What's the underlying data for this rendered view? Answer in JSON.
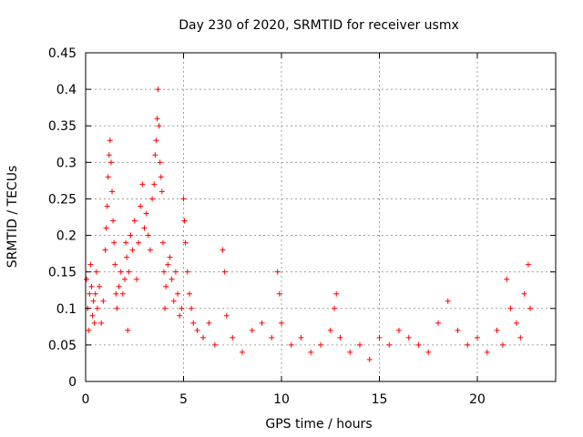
{
  "chart_data": {
    "type": "scatter",
    "title": "Day 230 of 2020, SRMTID for receiver usmx",
    "xlabel": "GPS time / hours",
    "ylabel": "SRMTID / TECUs",
    "xlim": [
      0,
      24
    ],
    "ylim": [
      0,
      0.45
    ],
    "xticks": [
      "0",
      "5",
      "10",
      "15",
      "20"
    ],
    "xtick_values": [
      0,
      5,
      10,
      15,
      20
    ],
    "yticks": [
      "0",
      "0.05",
      "0.1",
      "0.15",
      "0.2",
      "0.25",
      "0.3",
      "0.35",
      "0.4",
      "0.45"
    ],
    "ytick_values": [
      0,
      0.05,
      0.1,
      0.15,
      0.2,
      0.25,
      0.3,
      0.35,
      0.4,
      0.45
    ],
    "grid": true,
    "marker": "+",
    "marker_color": "#ff0000",
    "series": [
      {
        "name": "SRMTID",
        "points": [
          [
            0.05,
            0.14
          ],
          [
            0.1,
            0.1
          ],
          [
            0.15,
            0.07
          ],
          [
            0.2,
            0.12
          ],
          [
            0.25,
            0.16
          ],
          [
            0.3,
            0.13
          ],
          [
            0.35,
            0.09
          ],
          [
            0.4,
            0.11
          ],
          [
            0.45,
            0.08
          ],
          [
            0.5,
            0.12
          ],
          [
            0.55,
            0.15
          ],
          [
            0.6,
            0.1
          ],
          [
            0.7,
            0.13
          ],
          [
            0.8,
            0.08
          ],
          [
            0.9,
            0.11
          ],
          [
            1.0,
            0.18
          ],
          [
            1.05,
            0.21
          ],
          [
            1.1,
            0.24
          ],
          [
            1.15,
            0.28
          ],
          [
            1.2,
            0.31
          ],
          [
            1.25,
            0.33
          ],
          [
            1.3,
            0.3
          ],
          [
            1.35,
            0.26
          ],
          [
            1.4,
            0.22
          ],
          [
            1.45,
            0.19
          ],
          [
            1.5,
            0.16
          ],
          [
            1.55,
            0.12
          ],
          [
            1.6,
            0.1
          ],
          [
            1.7,
            0.13
          ],
          [
            1.8,
            0.15
          ],
          [
            1.9,
            0.12
          ],
          [
            2.0,
            0.14
          ],
          [
            2.05,
            0.19
          ],
          [
            2.1,
            0.17
          ],
          [
            2.15,
            0.07
          ],
          [
            2.2,
            0.15
          ],
          [
            2.3,
            0.2
          ],
          [
            2.4,
            0.18
          ],
          [
            2.5,
            0.22
          ],
          [
            2.6,
            0.14
          ],
          [
            2.7,
            0.19
          ],
          [
            2.8,
            0.24
          ],
          [
            2.9,
            0.27
          ],
          [
            3.0,
            0.21
          ],
          [
            3.1,
            0.23
          ],
          [
            3.2,
            0.2
          ],
          [
            3.3,
            0.18
          ],
          [
            3.4,
            0.25
          ],
          [
            3.5,
            0.27
          ],
          [
            3.55,
            0.31
          ],
          [
            3.6,
            0.33
          ],
          [
            3.65,
            0.36
          ],
          [
            3.7,
            0.4
          ],
          [
            3.75,
            0.35
          ],
          [
            3.8,
            0.3
          ],
          [
            3.85,
            0.28
          ],
          [
            3.9,
            0.26
          ],
          [
            3.95,
            0.19
          ],
          [
            4.0,
            0.15
          ],
          [
            4.05,
            0.1
          ],
          [
            4.1,
            0.13
          ],
          [
            4.2,
            0.16
          ],
          [
            4.3,
            0.17
          ],
          [
            4.4,
            0.14
          ],
          [
            4.5,
            0.11
          ],
          [
            4.6,
            0.15
          ],
          [
            4.7,
            0.12
          ],
          [
            4.8,
            0.09
          ],
          [
            4.9,
            0.1
          ],
          [
            5.0,
            0.25
          ],
          [
            5.05,
            0.22
          ],
          [
            5.1,
            0.19
          ],
          [
            5.2,
            0.15
          ],
          [
            5.3,
            0.12
          ],
          [
            5.4,
            0.1
          ],
          [
            5.5,
            0.08
          ],
          [
            5.7,
            0.07
          ],
          [
            6.0,
            0.06
          ],
          [
            6.3,
            0.08
          ],
          [
            6.6,
            0.05
          ],
          [
            7.0,
            0.18
          ],
          [
            7.1,
            0.15
          ],
          [
            7.2,
            0.09
          ],
          [
            7.5,
            0.06
          ],
          [
            8.0,
            0.04
          ],
          [
            8.5,
            0.07
          ],
          [
            9.0,
            0.08
          ],
          [
            9.5,
            0.06
          ],
          [
            9.8,
            0.15
          ],
          [
            9.9,
            0.12
          ],
          [
            10.0,
            0.08
          ],
          [
            10.5,
            0.05
          ],
          [
            11.0,
            0.06
          ],
          [
            11.5,
            0.04
          ],
          [
            12.0,
            0.05
          ],
          [
            12.5,
            0.07
          ],
          [
            12.7,
            0.1
          ],
          [
            12.8,
            0.12
          ],
          [
            13.0,
            0.06
          ],
          [
            13.5,
            0.04
          ],
          [
            14.0,
            0.05
          ],
          [
            14.5,
            0.03
          ],
          [
            15.0,
            0.06
          ],
          [
            15.5,
            0.05
          ],
          [
            16.0,
            0.07
          ],
          [
            16.5,
            0.06
          ],
          [
            17.0,
            0.05
          ],
          [
            17.5,
            0.04
          ],
          [
            18.0,
            0.08
          ],
          [
            18.5,
            0.11
          ],
          [
            19.0,
            0.07
          ],
          [
            19.5,
            0.05
          ],
          [
            20.0,
            0.06
          ],
          [
            20.5,
            0.04
          ],
          [
            21.0,
            0.07
          ],
          [
            21.3,
            0.05
          ],
          [
            21.5,
            0.14
          ],
          [
            21.7,
            0.1
          ],
          [
            22.0,
            0.08
          ],
          [
            22.2,
            0.06
          ],
          [
            22.4,
            0.12
          ],
          [
            22.6,
            0.16
          ],
          [
            22.7,
            0.1
          ]
        ]
      }
    ]
  }
}
